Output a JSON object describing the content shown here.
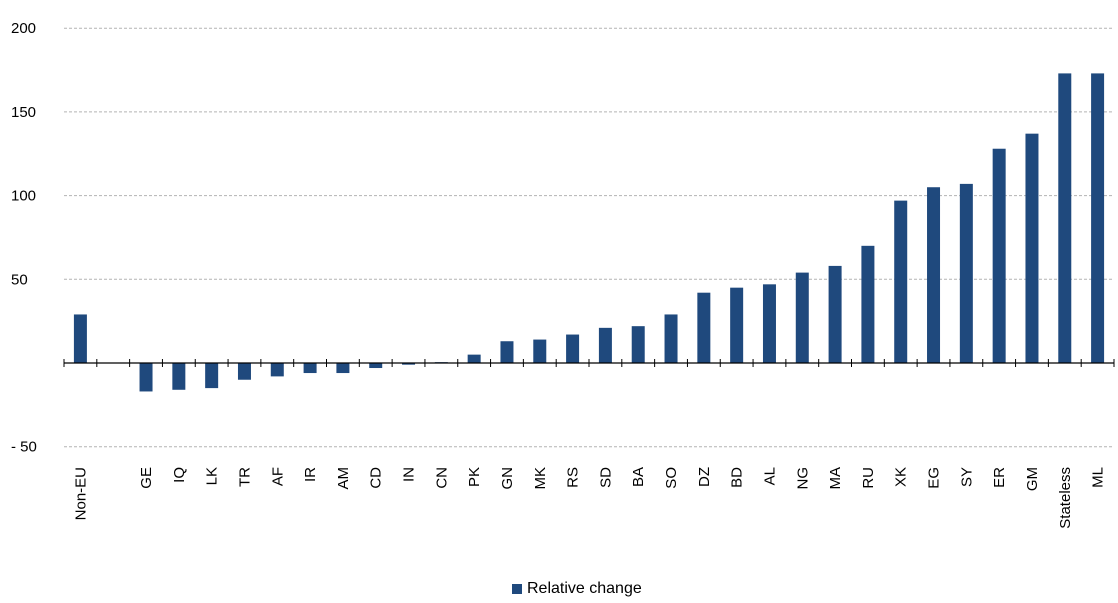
{
  "chart_data": {
    "type": "bar",
    "title": "",
    "xlabel": "",
    "ylabel": "",
    "ylim": [
      -50,
      200
    ],
    "y_ticks": [
      200,
      150,
      100,
      50,
      -50
    ],
    "y_tick_labels": [
      "200",
      "150",
      "100",
      "50",
      "- 50"
    ],
    "grid": true,
    "legend_position": "bottom-center",
    "bar_color": "#1f497d",
    "categories": [
      "Non-EU",
      "",
      "GE",
      "IQ",
      "LK",
      "TR",
      "AF",
      "IR",
      "AM",
      "CD",
      "IN",
      "CN",
      "PK",
      "GN",
      "MK",
      "RS",
      "SD",
      "BA",
      "SO",
      "DZ",
      "BD",
      "AL",
      "NG",
      "MA",
      "RU",
      "XK",
      "EG",
      "SY",
      "ER",
      "GM",
      "Stateless",
      "ML"
    ],
    "series": [
      {
        "name": "Relative change",
        "values": [
          29,
          null,
          -17,
          -16,
          -15,
          -10,
          -8,
          -6,
          -6,
          -3,
          -1,
          0.5,
          5,
          13,
          14,
          17,
          21,
          22,
          29,
          42,
          45,
          47,
          54,
          58,
          70,
          97,
          105,
          107,
          128,
          137,
          173,
          173
        ]
      }
    ]
  }
}
